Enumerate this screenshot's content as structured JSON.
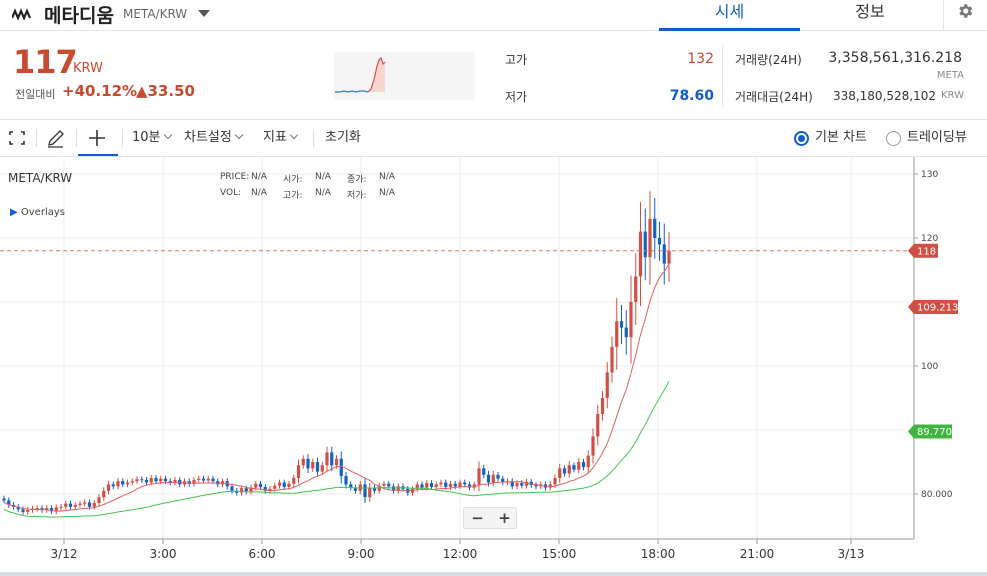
{
  "header": {
    "coin_name": "메타디움",
    "pair": "META/KRW",
    "tabs": [
      {
        "label": "시세",
        "active": true
      },
      {
        "label": "정보",
        "active": false
      }
    ]
  },
  "summary": {
    "price": "117",
    "unit": "KRW",
    "change_label": "전일대비",
    "change_rate": "+40.12%",
    "change_amount": "▲33.50",
    "high_label": "고가",
    "high": "132",
    "low_label": "저가",
    "low": "78.60",
    "volume_label": "거래량(24H)",
    "volume": "3,358,561,316.218",
    "volume_unit": "META",
    "value_label": "거래대금(24H)",
    "value": "338,180,528,102",
    "value_unit": "KRW"
  },
  "toolbar": {
    "interval": "10분",
    "settings": "차트설정",
    "indicators": "지표",
    "reset": "초기화",
    "view_basic": "기본 차트",
    "view_tradingview": "트레이딩뷰"
  },
  "chart": {
    "pair": "META/KRW",
    "overlays_label": "Overlays",
    "ohlc": {
      "price_label": "PRICE:",
      "price": "N/A",
      "open_label": "시가:",
      "open": "N/A",
      "close_label": "종가:",
      "close": "N/A",
      "vol_label": "VOL:",
      "vol": "N/A",
      "high_label": "고가:",
      "high": "N/A",
      "low_label": "저가:",
      "low": "N/A"
    },
    "zoom_out": "−",
    "zoom_in": "+"
  },
  "chart_data": {
    "type": "candlestick",
    "x_ticks": [
      "3/12",
      "3:00",
      "6:00",
      "9:00",
      "12:00",
      "15:00",
      "18:00",
      "21:00",
      "3/13"
    ],
    "y_ticks": [
      "130",
      "120",
      "",
      "100",
      "",
      "80.000"
    ],
    "y_tick_values": [
      130,
      120,
      110,
      100,
      90,
      80
    ],
    "current_price_label": "118",
    "current_price": 118,
    "ma_short_label": "109.213",
    "ma_short": 109.213,
    "ma_long_label": "89.770",
    "ma_long": 89.77,
    "colors": {
      "up": "#d24f45",
      "down": "#1261c4",
      "ma_short": "#e35d5d",
      "ma_long": "#45c44a"
    },
    "closes": [
      79.0,
      78.3,
      78.0,
      77.6,
      77.2,
      77.5,
      77.7,
      77.8,
      77.5,
      77.8,
      77.3,
      77.9,
      78.0,
      78.5,
      78.0,
      78.3,
      78.5,
      78.7,
      78.0,
      78.6,
      79.5,
      80.5,
      81.5,
      81.2,
      82.0,
      81.5,
      81.8,
      82.0,
      82.3,
      82.2,
      81.8,
      82.5,
      82.0,
      82.4,
      82.0,
      81.8,
      82.2,
      81.5,
      82.0,
      81.6,
      82.2,
      82.4,
      82.1,
      82.4,
      82.0,
      81.5,
      82.0,
      81.2,
      80.5,
      80.2,
      80.9,
      80.4,
      81.0,
      81.6,
      81.1,
      80.5,
      80.8,
      81.3,
      81.8,
      81.1,
      81.6,
      82.5,
      84.5,
      85.5,
      84.0,
      85.0,
      83.5,
      84.5,
      86.5,
      84.5,
      85.5,
      82.8,
      81.5,
      81.0,
      80.5,
      81.5,
      79.5,
      81.0,
      80.5,
      81.3,
      81.6,
      81.2,
      80.5,
      81.2,
      80.8,
      80.2,
      80.8,
      81.5,
      81.0,
      81.7,
      81.1,
      81.5,
      81.8,
      81.1,
      81.6,
      81.2,
      81.8,
      81.5,
      81.0,
      81.5,
      84.0,
      83.0,
      81.8,
      83.0,
      82.4,
      81.8,
      82.0,
      81.2,
      81.7,
      81.3,
      81.9,
      81.4,
      81.2,
      81.5,
      81.0,
      81.5,
      82.5,
      84.0,
      83.2,
      84.5,
      83.8,
      85.0,
      84.2,
      86.0,
      89.0,
      92.5,
      95.0,
      99.0,
      103.0,
      107.0,
      106.0,
      104.5,
      110.0,
      114.0,
      121.0,
      117.0,
      123.0,
      120.0,
      119.0,
      116.0,
      118.0
    ]
  }
}
